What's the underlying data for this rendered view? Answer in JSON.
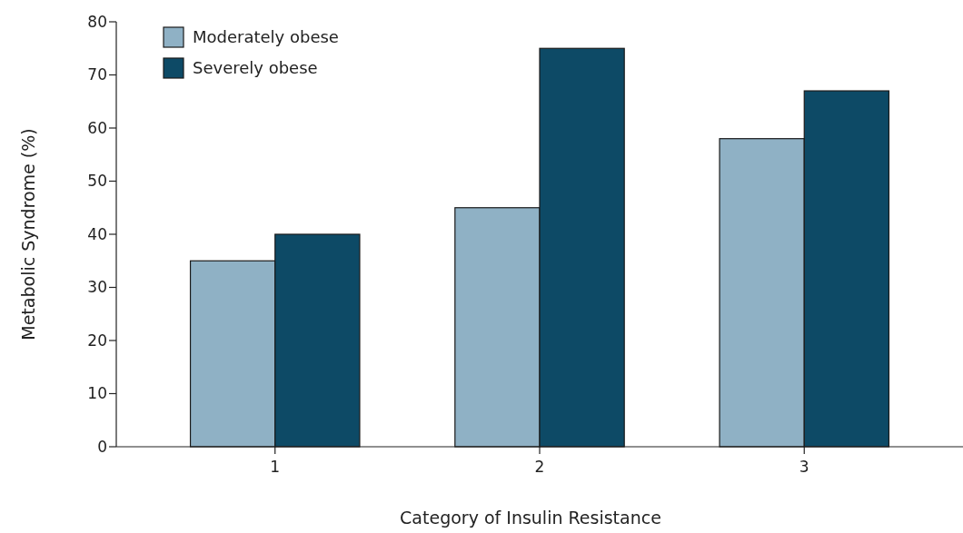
{
  "chart_data": {
    "type": "bar",
    "xlabel": "Category of Insulin Resistance",
    "ylabel": "Metabolic Syndrome (%)",
    "categories": [
      "1",
      "2",
      "3"
    ],
    "series": [
      {
        "name": "Moderately obese",
        "color": "#8fb1c5",
        "values": [
          35,
          45,
          58
        ]
      },
      {
        "name": "Severely obese",
        "color": "#0d4a66",
        "values": [
          40,
          75,
          67
        ]
      }
    ],
    "ylim": [
      0,
      80
    ],
    "yticks": [
      0,
      10,
      20,
      30,
      40,
      50,
      60,
      70,
      80
    ],
    "grid": false,
    "legend": "top left"
  }
}
